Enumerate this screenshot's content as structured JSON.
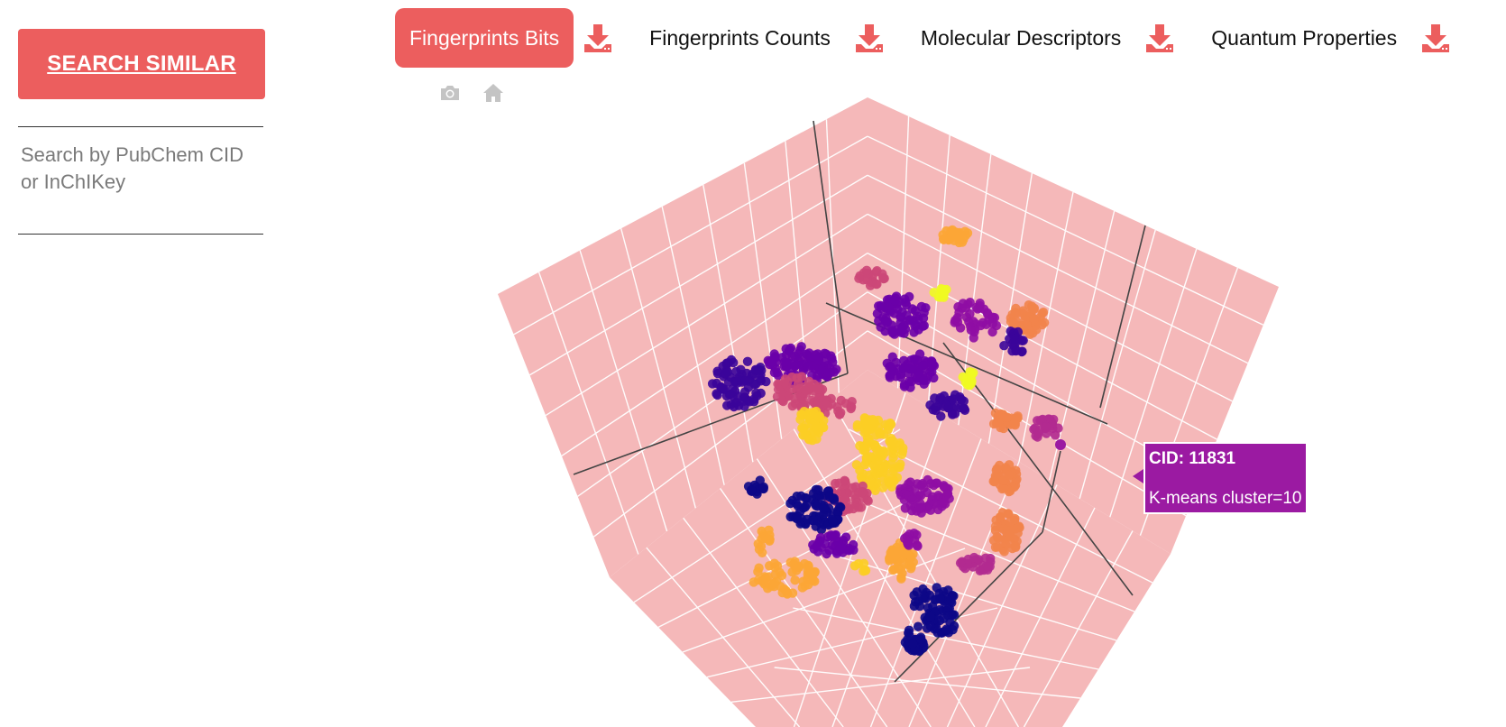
{
  "sidebar": {
    "search_button": "SEARCH SIMILAR",
    "search_placeholder": "Search by PubChem CID or InChIKey",
    "search_value": ""
  },
  "tabs": [
    {
      "label": "Fingerprints Bits",
      "active": true,
      "download_icon": "download-icon"
    },
    {
      "label": "Fingerprints Counts",
      "active": false,
      "download_icon": "download-icon"
    },
    {
      "label": "Molecular Descriptors",
      "active": false,
      "download_icon": "download-icon"
    },
    {
      "label": "Quantum Properties",
      "active": false,
      "download_icon": "download-icon"
    }
  ],
  "modebar": [
    "camera-icon",
    "home-icon"
  ],
  "colors": {
    "accent": "#ec5e5e",
    "plane": "#f5b8b9",
    "tooltip": "#9b1aa2",
    "palette": [
      "#0d0887",
      "#3b049a",
      "#6a00a8",
      "#8f0da4",
      "#b12a90",
      "#cc4778",
      "#e16462",
      "#f2844b",
      "#fca636",
      "#fcce25",
      "#f0f921"
    ]
  },
  "tooltip": {
    "cid": "CID: 11831",
    "cluster": "K-means cluster=10"
  },
  "chart_data": {
    "type": "scatter",
    "projection": "3d",
    "color_by": "K-means cluster",
    "grid": true,
    "points_shown": "approximate cluster distribution"
  }
}
